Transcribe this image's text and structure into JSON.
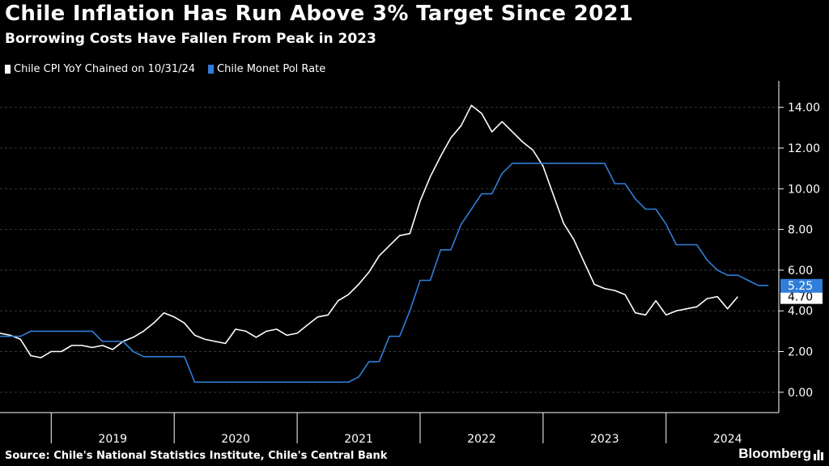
{
  "header": {
    "title": "Chile Inflation Has Run Above 3% Target Since 2021",
    "subtitle": "Borrowing Costs Have Fallen From Peak in 2023"
  },
  "footer": {
    "source": "Source: Chile's National Statistics Institute, Chile's Central Bank",
    "brand": "Bloomberg"
  },
  "colors": {
    "background": "#000000",
    "cpi": "#ffffff",
    "rate": "#2f7ed8",
    "grid": "#3a3a3a"
  },
  "chart_data": {
    "type": "line",
    "title": "Chile Inflation Has Run Above 3% Target Since 2021",
    "subtitle": "Borrowing Costs Have Fallen From Peak in 2023",
    "x_ticks": [
      "2019",
      "2020",
      "2021",
      "2022",
      "2023",
      "2024"
    ],
    "y_ticks": [
      "0.00",
      "2.00",
      "4.00",
      "6.00",
      "8.00",
      "10.00",
      "12.00",
      "14.00"
    ],
    "ylim": [
      -1,
      15.3
    ],
    "xlim": [
      "2018-07",
      "2024-11"
    ],
    "grid": "horizontal dashed",
    "legend_position": "top-left",
    "series": [
      {
        "name": "Chile CPI YoY Chained on 10/31/24",
        "color": "#ffffff",
        "last_value_label": "4.70",
        "points": [
          [
            "2018-07",
            3.1
          ],
          [
            "2018-08",
            2.9
          ],
          [
            "2018-09",
            2.8
          ],
          [
            "2018-10",
            2.6
          ],
          [
            "2018-11",
            1.8
          ],
          [
            "2018-12",
            1.7
          ],
          [
            "2019-01",
            2.0
          ],
          [
            "2019-02",
            2.0
          ],
          [
            "2019-03",
            2.3
          ],
          [
            "2019-04",
            2.3
          ],
          [
            "2019-05",
            2.2
          ],
          [
            "2019-06",
            2.3
          ],
          [
            "2019-07",
            2.1
          ],
          [
            "2019-08",
            2.5
          ],
          [
            "2019-09",
            2.7
          ],
          [
            "2019-10",
            3.0
          ],
          [
            "2019-11",
            3.4
          ],
          [
            "2019-12",
            3.9
          ],
          [
            "2020-01",
            3.7
          ],
          [
            "2020-02",
            3.4
          ],
          [
            "2020-03",
            2.8
          ],
          [
            "2020-04",
            2.6
          ],
          [
            "2020-05",
            2.5
          ],
          [
            "2020-06",
            2.4
          ],
          [
            "2020-07",
            3.1
          ],
          [
            "2020-08",
            3.0
          ],
          [
            "2020-09",
            2.7
          ],
          [
            "2020-10",
            3.0
          ],
          [
            "2020-11",
            3.1
          ],
          [
            "2020-12",
            2.8
          ],
          [
            "2021-01",
            2.9
          ],
          [
            "2021-02",
            3.3
          ],
          [
            "2021-03",
            3.7
          ],
          [
            "2021-04",
            3.8
          ],
          [
            "2021-05",
            4.5
          ],
          [
            "2021-06",
            4.8
          ],
          [
            "2021-07",
            5.3
          ],
          [
            "2021-08",
            5.9
          ],
          [
            "2021-09",
            6.7
          ],
          [
            "2021-10",
            7.2
          ],
          [
            "2021-11",
            7.7
          ],
          [
            "2021-12",
            7.8
          ],
          [
            "2022-01",
            9.4
          ],
          [
            "2022-02",
            10.6
          ],
          [
            "2022-03",
            11.6
          ],
          [
            "2022-04",
            12.5
          ],
          [
            "2022-05",
            13.1
          ],
          [
            "2022-06",
            14.1
          ],
          [
            "2022-07",
            13.7
          ],
          [
            "2022-08",
            12.8
          ],
          [
            "2022-09",
            13.3
          ],
          [
            "2022-10",
            12.8
          ],
          [
            "2022-11",
            12.3
          ],
          [
            "2022-12",
            11.9
          ],
          [
            "2023-01",
            11.1
          ],
          [
            "2023-02",
            9.7
          ],
          [
            "2023-03",
            8.3
          ],
          [
            "2023-04",
            7.5
          ],
          [
            "2023-05",
            6.4
          ],
          [
            "2023-06",
            5.3
          ],
          [
            "2023-07",
            5.1
          ],
          [
            "2023-08",
            5.0
          ],
          [
            "2023-09",
            4.8
          ],
          [
            "2023-10",
            3.9
          ],
          [
            "2023-11",
            3.8
          ],
          [
            "2023-12",
            4.5
          ],
          [
            "2024-01",
            3.8
          ],
          [
            "2024-02",
            4.0
          ],
          [
            "2024-03",
            4.1
          ],
          [
            "2024-04",
            4.2
          ],
          [
            "2024-05",
            4.6
          ],
          [
            "2024-06",
            4.7
          ],
          [
            "2024-07",
            4.1
          ],
          [
            "2024-08",
            4.7
          ]
        ]
      },
      {
        "name": "Chile Monet Pol Rate",
        "color": "#2f7ed8",
        "last_value_label": "5.25",
        "points": [
          [
            "2018-07",
            2.5
          ],
          [
            "2018-08",
            2.75
          ],
          [
            "2018-10",
            2.75
          ],
          [
            "2018-11",
            3.0
          ],
          [
            "2019-05",
            3.0
          ],
          [
            "2019-06",
            2.5
          ],
          [
            "2019-08",
            2.5
          ],
          [
            "2019-09",
            2.0
          ],
          [
            "2019-10",
            1.75
          ],
          [
            "2020-02",
            1.75
          ],
          [
            "2020-03",
            0.5
          ],
          [
            "2021-06",
            0.5
          ],
          [
            "2021-07",
            0.75
          ],
          [
            "2021-08",
            1.5
          ],
          [
            "2021-09",
            1.5
          ],
          [
            "2021-10",
            2.75
          ],
          [
            "2021-11",
            2.75
          ],
          [
            "2021-12",
            4.0
          ],
          [
            "2022-01",
            5.5
          ],
          [
            "2022-02",
            5.5
          ],
          [
            "2022-03",
            7.0
          ],
          [
            "2022-04",
            7.0
          ],
          [
            "2022-05",
            8.25
          ],
          [
            "2022-06",
            9.0
          ],
          [
            "2022-07",
            9.75
          ],
          [
            "2022-08",
            9.75
          ],
          [
            "2022-09",
            10.75
          ],
          [
            "2022-10",
            11.25
          ],
          [
            "2023-06",
            11.25
          ],
          [
            "2023-07",
            11.25
          ],
          [
            "2023-08",
            10.25
          ],
          [
            "2023-09",
            10.25
          ],
          [
            "2023-10",
            9.5
          ],
          [
            "2023-11",
            9.0
          ],
          [
            "2023-12",
            9.0
          ],
          [
            "2024-01",
            8.25
          ],
          [
            "2024-02",
            7.25
          ],
          [
            "2024-03",
            7.25
          ],
          [
            "2024-04",
            7.25
          ],
          [
            "2024-05",
            6.5
          ],
          [
            "2024-06",
            6.0
          ],
          [
            "2024-07",
            5.75
          ],
          [
            "2024-08",
            5.75
          ],
          [
            "2024-09",
            5.5
          ],
          [
            "2024-10",
            5.25
          ],
          [
            "2024-11",
            5.25
          ]
        ]
      }
    ]
  }
}
